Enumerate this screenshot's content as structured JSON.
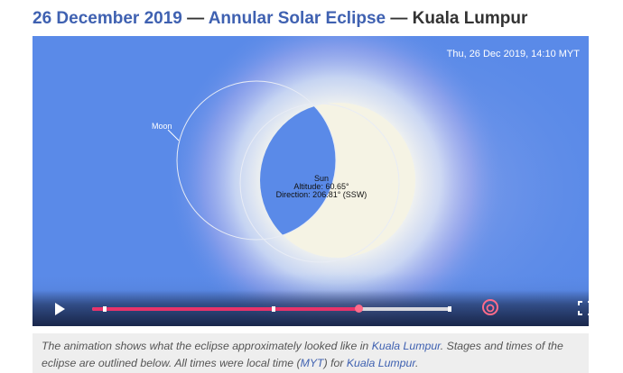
{
  "heading": {
    "date_link": "26 December 2019",
    "sep1": " — ",
    "type_link": "Annular Solar Eclipse",
    "sep2": " — ",
    "location": "Kuala Lumpur"
  },
  "player": {
    "timestamp": "Thu, 26 Dec 2019, 14:10 MYT",
    "moon_label": "Moon",
    "sun_label": "Sun",
    "sun_altitude": "Altitude: 60.65°",
    "sun_direction": "Direction: 206.81° (SSW)",
    "progress_fraction": 0.74,
    "marker_fractions": [
      0.03,
      0.5,
      1.0
    ],
    "colors": {
      "sky": "#5a8ae8",
      "sun_disk": "#f5f3e4",
      "progress": "#e8336a",
      "accent": "#ff6b8a"
    },
    "icons": {
      "play": "play-icon",
      "loop": "loop-icon",
      "fullscreen": "fullscreen-icon"
    }
  },
  "caption": {
    "t1": "The animation shows what the eclipse approximately looked like in ",
    "link1": "Kuala Lumpur",
    "t2": ". Stages and times of the eclipse are outlined below. All times were local time (",
    "link2": "MYT",
    "t3": ") for ",
    "link3": "Kuala Lumpur",
    "t4": "."
  }
}
